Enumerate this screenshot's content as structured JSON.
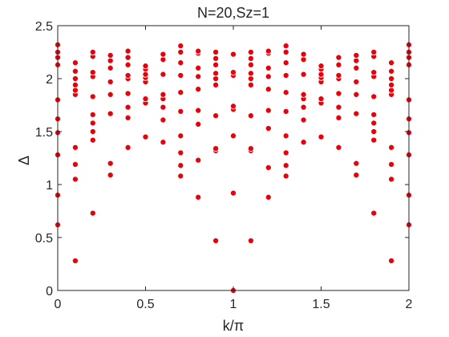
{
  "chart_data": {
    "type": "scatter",
    "title": "N=20,Sz=1",
    "xlabel": "k/π",
    "ylabel": "Δ",
    "xlim": [
      0,
      2
    ],
    "ylim": [
      0,
      2.5
    ],
    "xticks": [
      "0",
      "0.5",
      "1",
      "1.5",
      "2"
    ],
    "yticks": [
      "0",
      "0.5",
      "1",
      "1.5",
      "2",
      "2.5"
    ],
    "grid": false,
    "marker_color": "#e8000b",
    "points": [
      [
        0.0,
        0.62
      ],
      [
        0.0,
        0.9
      ],
      [
        0.0,
        1.28
      ],
      [
        0.0,
        1.49
      ],
      [
        0.0,
        1.62
      ],
      [
        0.0,
        1.8
      ],
      [
        0.0,
        2.13
      ],
      [
        0.0,
        2.2
      ],
      [
        0.0,
        2.25
      ],
      [
        0.0,
        2.32
      ],
      [
        0.1,
        0.28
      ],
      [
        0.1,
        1.05
      ],
      [
        0.1,
        1.19
      ],
      [
        0.1,
        1.35
      ],
      [
        0.1,
        1.85
      ],
      [
        0.1,
        1.89
      ],
      [
        0.1,
        1.94
      ],
      [
        0.1,
        2.0
      ],
      [
        0.1,
        2.07
      ],
      [
        0.1,
        2.15
      ],
      [
        0.2,
        0.73
      ],
      [
        0.2,
        1.42
      ],
      [
        0.2,
        1.5
      ],
      [
        0.2,
        1.58
      ],
      [
        0.2,
        1.66
      ],
      [
        0.2,
        1.83
      ],
      [
        0.2,
        2.02
      ],
      [
        0.2,
        2.06
      ],
      [
        0.2,
        2.21
      ],
      [
        0.2,
        2.25
      ],
      [
        0.3,
        1.09
      ],
      [
        0.3,
        1.2
      ],
      [
        0.3,
        1.67
      ],
      [
        0.3,
        1.85
      ],
      [
        0.3,
        1.97
      ],
      [
        0.3,
        2.1
      ],
      [
        0.3,
        2.17
      ],
      [
        0.3,
        2.22
      ],
      [
        0.4,
        1.35
      ],
      [
        0.4,
        1.63
      ],
      [
        0.4,
        1.73
      ],
      [
        0.4,
        1.86
      ],
      [
        0.4,
        2.0
      ],
      [
        0.4,
        2.03
      ],
      [
        0.4,
        2.13
      ],
      [
        0.4,
        2.2
      ],
      [
        0.4,
        2.26
      ],
      [
        0.5,
        1.45
      ],
      [
        0.5,
        1.77
      ],
      [
        0.5,
        1.81
      ],
      [
        0.5,
        1.97
      ],
      [
        0.5,
        2.01
      ],
      [
        0.5,
        2.04
      ],
      [
        0.5,
        2.09
      ],
      [
        0.5,
        2.12
      ],
      [
        0.6,
        1.4
      ],
      [
        0.6,
        1.61
      ],
      [
        0.6,
        1.73
      ],
      [
        0.6,
        1.81
      ],
      [
        0.6,
        1.85
      ],
      [
        0.6,
        2.04
      ],
      [
        0.6,
        2.18
      ],
      [
        0.6,
        2.23
      ],
      [
        0.7,
        1.08
      ],
      [
        0.7,
        1.18
      ],
      [
        0.7,
        1.3
      ],
      [
        0.7,
        1.46
      ],
      [
        0.7,
        1.69
      ],
      [
        0.7,
        1.87
      ],
      [
        0.7,
        2.03
      ],
      [
        0.7,
        2.15
      ],
      [
        0.7,
        2.25
      ],
      [
        0.7,
        2.31
      ],
      [
        0.8,
        0.88
      ],
      [
        0.8,
        1.23
      ],
      [
        0.8,
        1.57
      ],
      [
        0.8,
        1.7
      ],
      [
        0.8,
        1.9
      ],
      [
        0.8,
        2.02
      ],
      [
        0.8,
        2.1
      ],
      [
        0.8,
        2.24
      ],
      [
        0.8,
        2.26
      ],
      [
        0.9,
        0.47
      ],
      [
        0.9,
        1.32
      ],
      [
        0.9,
        1.34
      ],
      [
        0.9,
        1.65
      ],
      [
        0.9,
        1.94
      ],
      [
        0.9,
        2.0
      ],
      [
        0.9,
        2.05
      ],
      [
        0.9,
        2.13
      ],
      [
        0.9,
        2.19
      ],
      [
        0.9,
        2.25
      ],
      [
        1.0,
        0.0
      ],
      [
        1.0,
        0.92
      ],
      [
        1.0,
        1.46
      ],
      [
        1.0,
        1.71
      ],
      [
        1.0,
        1.74
      ],
      [
        1.0,
        2.03
      ],
      [
        1.0,
        2.06
      ],
      [
        1.0,
        2.23
      ],
      [
        1.1,
        0.47
      ],
      [
        1.1,
        1.32
      ],
      [
        1.1,
        1.34
      ],
      [
        1.1,
        1.65
      ],
      [
        1.1,
        1.94
      ],
      [
        1.1,
        2.0
      ],
      [
        1.1,
        2.05
      ],
      [
        1.1,
        2.13
      ],
      [
        1.1,
        2.19
      ],
      [
        1.1,
        2.25
      ],
      [
        1.2,
        0.88
      ],
      [
        1.2,
        1.16
      ],
      [
        1.2,
        1.53
      ],
      [
        1.2,
        1.7
      ],
      [
        1.2,
        1.9
      ],
      [
        1.2,
        2.02
      ],
      [
        1.2,
        2.1
      ],
      [
        1.2,
        2.24
      ],
      [
        1.2,
        2.26
      ],
      [
        1.3,
        1.08
      ],
      [
        1.3,
        1.18
      ],
      [
        1.3,
        1.3
      ],
      [
        1.3,
        1.46
      ],
      [
        1.3,
        1.69
      ],
      [
        1.3,
        1.87
      ],
      [
        1.3,
        2.03
      ],
      [
        1.3,
        2.15
      ],
      [
        1.3,
        2.25
      ],
      [
        1.3,
        2.31
      ],
      [
        1.4,
        1.4
      ],
      [
        1.4,
        1.61
      ],
      [
        1.4,
        1.73
      ],
      [
        1.4,
        1.81
      ],
      [
        1.4,
        1.85
      ],
      [
        1.4,
        2.04
      ],
      [
        1.4,
        2.18
      ],
      [
        1.4,
        2.23
      ],
      [
        1.5,
        1.45
      ],
      [
        1.5,
        1.77
      ],
      [
        1.5,
        1.81
      ],
      [
        1.5,
        1.97
      ],
      [
        1.5,
        2.01
      ],
      [
        1.5,
        2.04
      ],
      [
        1.5,
        2.09
      ],
      [
        1.5,
        2.12
      ],
      [
        1.6,
        1.35
      ],
      [
        1.6,
        1.63
      ],
      [
        1.6,
        1.73
      ],
      [
        1.6,
        1.86
      ],
      [
        1.6,
        2.0
      ],
      [
        1.6,
        2.03
      ],
      [
        1.6,
        2.13
      ],
      [
        1.6,
        2.2
      ],
      [
        1.7,
        1.09
      ],
      [
        1.7,
        1.2
      ],
      [
        1.7,
        1.67
      ],
      [
        1.7,
        1.85
      ],
      [
        1.7,
        1.97
      ],
      [
        1.7,
        2.1
      ],
      [
        1.7,
        2.17
      ],
      [
        1.7,
        2.22
      ],
      [
        1.8,
        0.73
      ],
      [
        1.8,
        1.42
      ],
      [
        1.8,
        1.5
      ],
      [
        1.8,
        1.58
      ],
      [
        1.8,
        1.66
      ],
      [
        1.8,
        1.83
      ],
      [
        1.8,
        2.02
      ],
      [
        1.8,
        2.06
      ],
      [
        1.8,
        2.21
      ],
      [
        1.8,
        2.25
      ],
      [
        1.9,
        0.28
      ],
      [
        1.9,
        1.05
      ],
      [
        1.9,
        1.19
      ],
      [
        1.9,
        1.35
      ],
      [
        1.9,
        1.85
      ],
      [
        1.9,
        1.89
      ],
      [
        1.9,
        1.94
      ],
      [
        1.9,
        2.0
      ],
      [
        1.9,
        2.07
      ],
      [
        1.9,
        2.15
      ],
      [
        2.0,
        0.62
      ],
      [
        2.0,
        0.9
      ],
      [
        2.0,
        1.28
      ],
      [
        2.0,
        1.49
      ],
      [
        2.0,
        1.62
      ],
      [
        2.0,
        1.8
      ],
      [
        2.0,
        2.13
      ],
      [
        2.0,
        2.2
      ],
      [
        2.0,
        2.25
      ],
      [
        2.0,
        2.32
      ]
    ]
  }
}
